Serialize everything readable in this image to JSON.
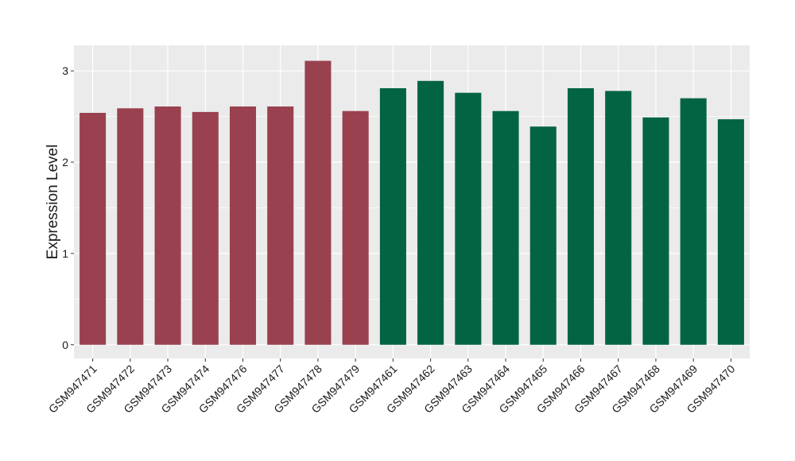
{
  "chart_data": {
    "type": "bar",
    "ylabel": "Expression Level",
    "xlabel": "",
    "ylim": [
      -0.15,
      3.28
    ],
    "yticks": [
      0,
      1,
      2,
      3
    ],
    "ytick_labels": [
      "0",
      "1",
      "2",
      "3"
    ],
    "grid": true,
    "legend": "none",
    "categories": [
      "GSM947471",
      "GSM947472",
      "GSM947473",
      "GSM947474",
      "GSM947476",
      "GSM947477",
      "GSM947478",
      "GSM947479",
      "GSM947461",
      "GSM947462",
      "GSM947463",
      "GSM947464",
      "GSM947465",
      "GSM947466",
      "GSM947467",
      "GSM947468",
      "GSM947469",
      "GSM947470"
    ],
    "values": [
      2.54,
      2.59,
      2.61,
      2.55,
      2.61,
      2.61,
      3.11,
      2.56,
      2.81,
      2.89,
      2.76,
      2.56,
      2.39,
      2.81,
      2.78,
      2.49,
      2.7,
      2.47
    ],
    "groups": [
      "a",
      "a",
      "a",
      "a",
      "a",
      "a",
      "a",
      "a",
      "b",
      "b",
      "b",
      "b",
      "b",
      "b",
      "b",
      "b",
      "b",
      "b"
    ],
    "colors": {
      "a": "#99414F",
      "b": "#036443",
      "panel": "#EBEBEB",
      "grid": "#FFFFFF"
    }
  }
}
